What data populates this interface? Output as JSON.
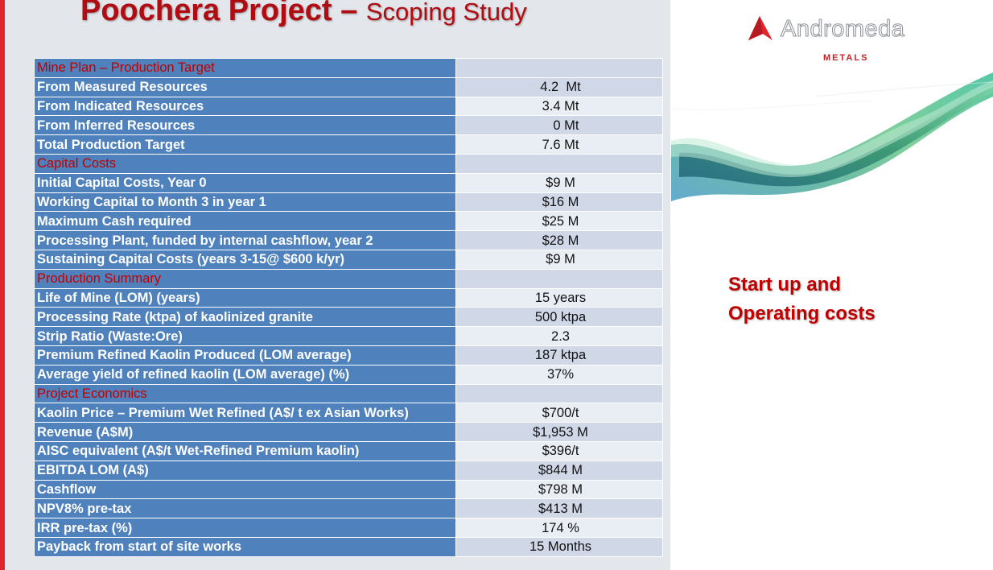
{
  "title": {
    "main": "Poochera Project – ",
    "sub": "Scoping Study"
  },
  "logo": {
    "name": "Andromeda",
    "sub": "METALS"
  },
  "callout": {
    "line1": "Start up and",
    "line2": "Operating costs"
  },
  "colors": {
    "title": "#b00d12",
    "label_bg": "#4f81bd",
    "section_text": "#c00000",
    "value_bg_dark": "#d0d8e8",
    "value_bg_light": "#e9edf4",
    "panel_bg": "#e3e6eb",
    "accent_stripe": "#e0262c"
  },
  "table": {
    "rows": [
      {
        "label": "Mine Plan – Production Target",
        "value": "",
        "section": true
      },
      {
        "label": "From Measured Resources",
        "value": "4.2  Mt"
      },
      {
        "label": "From Indicated Resources",
        "value": "3.4 Mt"
      },
      {
        "label": "From Inferred Resources",
        "value": "   0 Mt"
      },
      {
        "label": "Total Production Target",
        "value": "7.6 Mt"
      },
      {
        "label": "Capital Costs",
        "value": "",
        "section": true
      },
      {
        "label": "Initial Capital Costs, Year 0",
        "value": "$9 M"
      },
      {
        "label": "Working Capital to Month 3 in year 1",
        "value": "$16 M"
      },
      {
        "label": "Maximum Cash required",
        "value": "$25 M"
      },
      {
        "label": "Processing Plant, funded by internal cashflow, year 2",
        "value": "$28 M"
      },
      {
        "label": "Sustaining Capital Costs (years 3-15@ $600 k/yr)",
        "value": "$9 M"
      },
      {
        "label": "Production Summary",
        "value": "",
        "section": true
      },
      {
        "label": "Life of Mine (LOM) (years)",
        "value": "15 years"
      },
      {
        "label": "Processing Rate (ktpa) of kaolinized granite",
        "value": "500 ktpa"
      },
      {
        "label": "Strip Ratio (Waste:Ore)",
        "value": "2.3"
      },
      {
        "label": "Premium Refined Kaolin Produced (LOM average)",
        "value": "187 ktpa"
      },
      {
        "label": "Average  yield of refined kaolin (LOM average) (%)",
        "value": "37%"
      },
      {
        "label": "Project Economics",
        "value": "",
        "section": true
      },
      {
        "label": "Kaolin Price – Premium Wet Refined (A$/ t ex Asian Works)",
        "value": "$700/t"
      },
      {
        "label": "Revenue (A$M)",
        "value": "$1,953 M"
      },
      {
        "label": "AISC equivalent (A$/t  Wet-Refined Premium  kaolin)",
        "value": "$396/t"
      },
      {
        "label": "EBITDA LOM (A$)",
        "value": "$844 M"
      },
      {
        "label": "Cashflow",
        "value": "$798 M"
      },
      {
        "label": "NPV8% pre-tax",
        "value": "$413 M"
      },
      {
        "label": "IRR pre-tax (%)",
        "value": "174 %"
      },
      {
        "label": "Payback from start of site works",
        "value": "15 Months"
      }
    ]
  }
}
